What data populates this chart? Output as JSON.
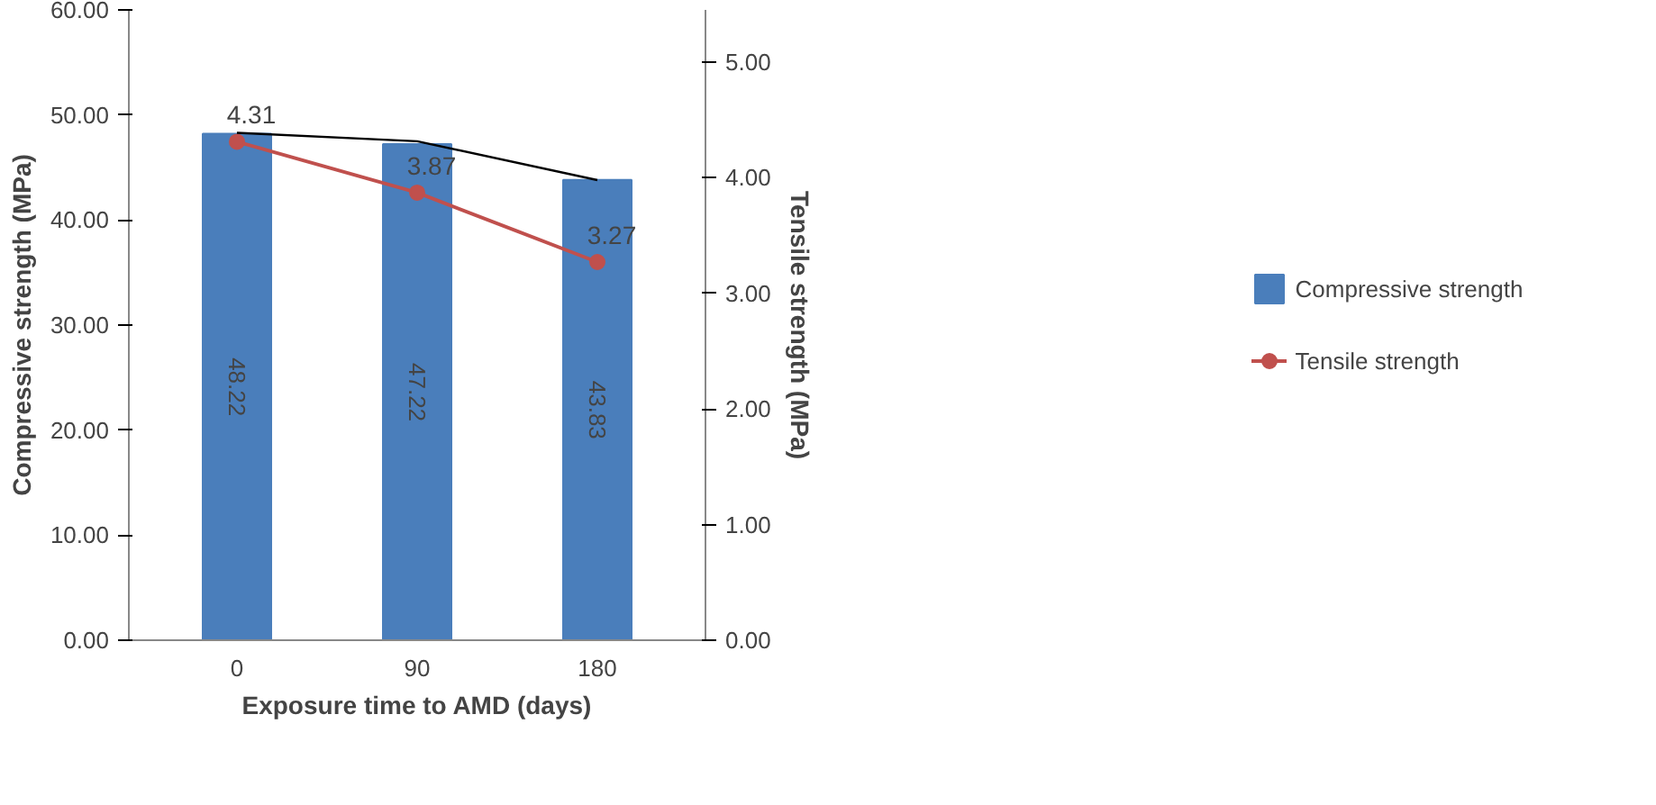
{
  "chart_data": {
    "type": "bar",
    "xlabel": "Exposure time to AMD (days)",
    "ylabel": "Compressive strength (MPa)",
    "y2label": "Tensile strength (MPa)",
    "categories": [
      "0",
      "90",
      "180"
    ],
    "series": [
      {
        "name": "Compressive strength",
        "color": "#4a7ebb",
        "values": [
          48.22,
          47.22,
          43.83
        ],
        "value_labels": [
          "48.22",
          "47.22",
          "43.83"
        ]
      },
      {
        "name": "Tensile strength",
        "type": "line",
        "axis": "y2",
        "color": "#c0504d",
        "marker": "circle",
        "values": [
          4.31,
          3.87,
          3.27
        ],
        "value_labels": [
          "4.31",
          "3.87",
          "3.27"
        ]
      },
      {
        "type": "line",
        "color": "#000000",
        "values": [
          48.3,
          47.5,
          43.8
        ]
      }
    ],
    "ylim": [
      0,
      60
    ],
    "yticks": [
      {
        "value": 0,
        "label": "0.00"
      },
      {
        "value": 10,
        "label": "10.00"
      },
      {
        "value": 20,
        "label": "20.00"
      },
      {
        "value": 30,
        "label": "30.00"
      },
      {
        "value": 40,
        "label": "40.00"
      },
      {
        "value": 50,
        "label": "50.00"
      },
      {
        "value": 60,
        "label": "60.00"
      }
    ],
    "y2lim": [
      0,
      5.45
    ],
    "y2ticks": [
      {
        "value": 0,
        "label": "0.00"
      },
      {
        "value": 1,
        "label": "1.00"
      },
      {
        "value": 2,
        "label": "2.00"
      },
      {
        "value": 3,
        "label": "3.00"
      },
      {
        "value": 4,
        "label": "4.00"
      },
      {
        "value": 5,
        "label": "5.00"
      }
    ],
    "legend": "right",
    "grid": false
  }
}
